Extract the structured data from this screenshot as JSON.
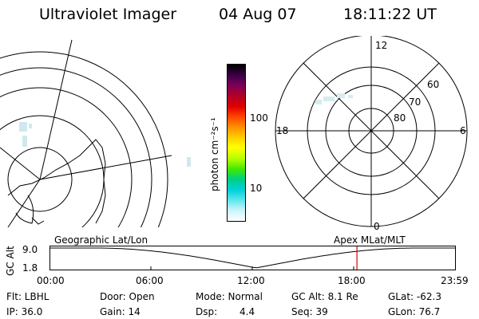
{
  "header": {
    "instrument": "Ultraviolet Imager",
    "date": "04 Aug 07",
    "time": "18:11:22 UT"
  },
  "left_map": {
    "label": "Geographic Lat/Lon"
  },
  "right_map": {
    "label": "Apex MLat/MLT",
    "hour_labels": {
      "top": "12",
      "left": "18",
      "right": "6",
      "bottom": "0"
    },
    "lat_labels": [
      "60",
      "70",
      "80"
    ]
  },
  "colorbar": {
    "unit_label": "photon cm⁻²s⁻¹",
    "ticks": [
      "100",
      "10"
    ],
    "colors": [
      "#000000",
      "#3a0048",
      "#7a0058",
      "#b00028",
      "#e00000",
      "#ff4000",
      "#ff9000",
      "#ffd000",
      "#ffff00",
      "#b8ff00",
      "#40e800",
      "#00d080",
      "#00d0d8",
      "#60e8f0",
      "#c8f4f8",
      "#ffffff"
    ]
  },
  "timeline": {
    "ylabel": "GC Alt",
    "y_ticks": [
      "9.0",
      "1.8"
    ],
    "x_ticks": [
      "00:00",
      "06:00",
      "12:00",
      "18:00",
      "23:59"
    ],
    "current_marker_time": "18:11",
    "marker_color": "#e00000"
  },
  "status": {
    "filter": "Flt: LBHL",
    "door": "Door: Open",
    "mode": "Mode: Normal",
    "gc_alt": "GC Alt: 8.1 Re",
    "glat": "GLat: -62.3",
    "ip": "IP: 36.0",
    "gain": "Gain: 14",
    "dsp_label": "Dsp:",
    "dsp_value": "4.4",
    "seq": "Seq: 39",
    "glon": "GLon: 76.7"
  }
}
